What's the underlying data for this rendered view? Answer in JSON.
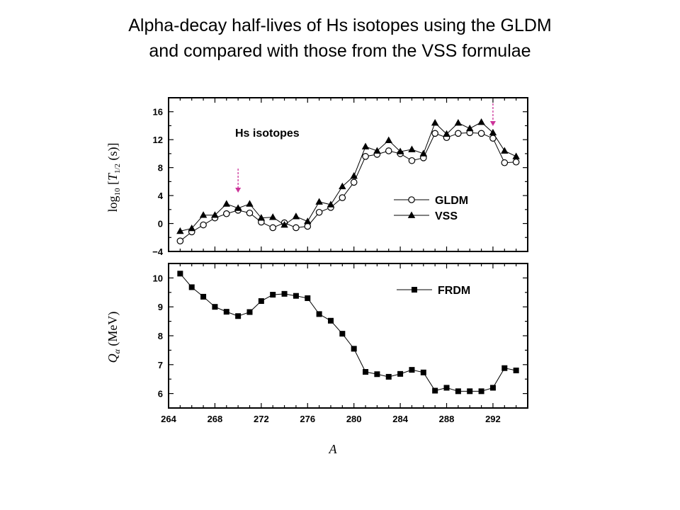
{
  "slide": {
    "title_line1": "Alpha-decay half-lives of Hs isotopes using the GLDM",
    "title_line2": "and compared with those from the VSS formulae"
  },
  "colors": {
    "marker": "#000000",
    "arrow": "#cc3399",
    "frame": "#000000"
  },
  "chart_data": [
    {
      "type": "line",
      "panel": "top",
      "annotation": "Hs isotopes",
      "ylabel": "log10 [T1/2 (s)]",
      "ylabel_parts": {
        "prefix": "log",
        "sub": "10",
        "open": " [",
        "T": "T",
        "Tsub": "1/2",
        "rest": " (s)]"
      },
      "xlabel": "",
      "xlim": [
        264,
        295
      ],
      "ylim": [
        -4,
        18
      ],
      "yticks": [
        "16",
        "12",
        "8",
        "4",
        "0",
        "−4"
      ],
      "ytick_values": [
        16,
        12,
        8,
        4,
        0,
        -4
      ],
      "x": [
        265,
        266,
        267,
        268,
        269,
        270,
        271,
        272,
        273,
        274,
        275,
        276,
        277,
        278,
        279,
        280,
        281,
        282,
        283,
        284,
        285,
        286,
        287,
        288,
        289,
        290,
        291,
        292,
        293,
        294
      ],
      "series": [
        {
          "name": "GLDM",
          "marker": "open-circle",
          "values": [
            -2.5,
            -1.2,
            -0.2,
            0.8,
            1.4,
            1.9,
            1.5,
            0.2,
            -0.6,
            0.1,
            -0.6,
            -0.4,
            1.6,
            2.3,
            3.7,
            5.9,
            9.6,
            9.9,
            10.4,
            10.0,
            9.0,
            9.4,
            12.9,
            12.3,
            12.9,
            13.0,
            12.9,
            12.2,
            8.7,
            8.8
          ]
        },
        {
          "name": "VSS",
          "marker": "filled-triangle",
          "values": [
            -1.1,
            -0.7,
            1.2,
            1.2,
            2.8,
            2.2,
            2.8,
            0.8,
            0.9,
            -0.2,
            1.0,
            0.3,
            3.1,
            2.7,
            5.3,
            6.8,
            11.0,
            10.4,
            11.9,
            10.3,
            10.6,
            10.0,
            14.4,
            12.8,
            14.4,
            13.6,
            14.5,
            13.0,
            10.4,
            9.6
          ]
        }
      ],
      "arrows_at_x": [
        270,
        292
      ]
    },
    {
      "type": "line",
      "panel": "bottom",
      "ylabel": "Qα (MeV)",
      "ylabel_parts": {
        "Q": "Q",
        "sub": "α",
        "rest": " (MeV)"
      },
      "xlabel": "A",
      "xlim": [
        264,
        295
      ],
      "ylim": [
        5.5,
        10.5
      ],
      "yticks": [
        "10",
        "9",
        "8",
        "7",
        "6"
      ],
      "ytick_values": [
        10,
        9,
        8,
        7,
        6
      ],
      "xticks": [
        "264",
        "268",
        "272",
        "276",
        "280",
        "284",
        "288",
        "292"
      ],
      "xtick_values": [
        264,
        268,
        272,
        276,
        280,
        284,
        288,
        292
      ],
      "x": [
        265,
        266,
        267,
        268,
        269,
        270,
        271,
        272,
        273,
        274,
        275,
        276,
        277,
        278,
        279,
        280,
        281,
        282,
        283,
        284,
        285,
        286,
        287,
        288,
        289,
        290,
        291,
        292,
        293,
        294
      ],
      "series": [
        {
          "name": "FRDM",
          "marker": "filled-square",
          "values": [
            10.15,
            9.68,
            9.35,
            9.0,
            8.83,
            8.68,
            8.82,
            9.2,
            9.42,
            9.45,
            9.38,
            9.3,
            8.75,
            8.52,
            8.07,
            7.55,
            6.75,
            6.67,
            6.58,
            6.68,
            6.82,
            6.73,
            6.1,
            6.2,
            6.08,
            6.08,
            6.08,
            6.2,
            6.88,
            6.8
          ]
        }
      ]
    }
  ]
}
